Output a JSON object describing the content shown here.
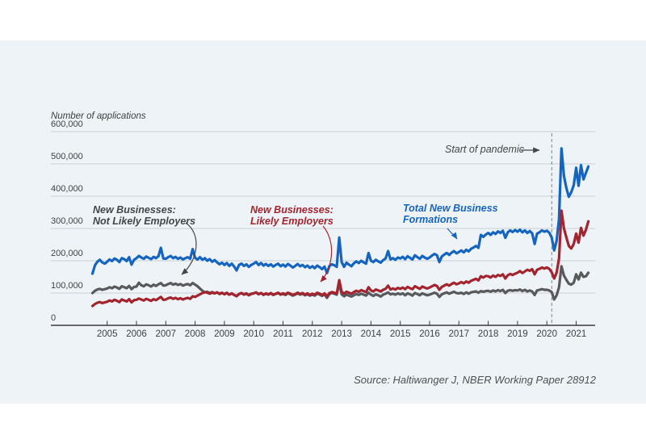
{
  "page": {
    "background": "#ffffff",
    "panel_background": "#eef3f7"
  },
  "axis_title": "Number of applications",
  "source": "Source: Haltiwanger J, NBER Working Paper 28912",
  "annotations": {
    "not_likely": {
      "line1": "New Businesses:",
      "line2": "Not Likely Employers"
    },
    "likely": {
      "line1": "New Businesses:",
      "line2": "Likely Employers"
    },
    "total": {
      "line1": "Total New Business",
      "line2": "Formations"
    },
    "pandemic": "Start of pandemic"
  },
  "colors": {
    "total_line": "#1565c0",
    "likely_line": "#a3242f",
    "not_likely_line": "#58595b",
    "gridline": "#c7cfd7",
    "axis": "#383c40",
    "pandemic_dash": "#969da6"
  },
  "chart_data": {
    "type": "line",
    "title": "",
    "ylabel": "Number of applications",
    "unit": "thousands of applications (values stored in thousands)",
    "ylim": [
      0,
      600
    ],
    "grid": true,
    "legend_position": "inline-annotations",
    "x_start": 2004.5,
    "x_step_years": 0.0833333,
    "pandemic_line_year": 2020.17,
    "y_ticks": [
      {
        "value": 0,
        "label": "0"
      },
      {
        "value": 100,
        "label": "100,000"
      },
      {
        "value": 200,
        "label": "200,000"
      },
      {
        "value": 300,
        "label": "300,000"
      },
      {
        "value": 400,
        "label": "400,000"
      },
      {
        "value": 500,
        "label": "500,000"
      },
      {
        "value": 600,
        "label": "600,000"
      }
    ],
    "x_ticks": [
      "2005",
      "2006",
      "2007",
      "2008",
      "2009",
      "2010",
      "2011",
      "2012",
      "2013",
      "2014",
      "2015",
      "2016",
      "2017",
      "2018",
      "2019",
      "2020",
      "2021"
    ],
    "series": [
      {
        "name": "New Businesses: Not Likely Employers",
        "color": "#58595b",
        "values": [
          100,
          107,
          111,
          113,
          110,
          112,
          114,
          118,
          115,
          120,
          117,
          113,
          121,
          118,
          115,
          122,
          112,
          119,
          120,
          132,
          124,
          121,
          127,
          124,
          120,
          126,
          122,
          127,
          131,
          123,
          124,
          128,
          131,
          126,
          129,
          125,
          128,
          123,
          126,
          128,
          124,
          131,
          126,
          121,
          114,
          107,
          102,
          104,
          100,
          103,
          99,
          102,
          97,
          100,
          97,
          101,
          95,
          99,
          94,
          91,
          97,
          100,
          95,
          98,
          93,
          97,
          99,
          102,
          96,
          100,
          94,
          98,
          95,
          99,
          94,
          97,
          100,
          95,
          97,
          94,
          99,
          96,
          92,
          95,
          99,
          95,
          98,
          93,
          96,
          92,
          95,
          92,
          98,
          95,
          91,
          96,
          85,
          97,
          100,
          98,
          95,
          130,
          96,
          90,
          95,
          92,
          89,
          93,
          97,
          94,
          98,
          95,
          92,
          101,
          95,
          91,
          96,
          93,
          89,
          95,
          98,
          102,
          96,
          98,
          95,
          99,
          96,
          99,
          93,
          99,
          96,
          92,
          100,
          97,
          93,
          99,
          96,
          93,
          95,
          98,
          101,
          98,
          88,
          96,
          99,
          102,
          98,
          101,
          104,
          100,
          99,
          101,
          97,
          102,
          98,
          102,
          104,
          105,
          101,
          106,
          104,
          106,
          107,
          104,
          108,
          105,
          109,
          106,
          110,
          100,
          107,
          109,
          107,
          109,
          108,
          111,
          106,
          110,
          105,
          108,
          105,
          94,
          108,
          110,
          112,
          110,
          110,
          108,
          103,
          80,
          93,
          118,
          183,
          154,
          141,
          129,
          126,
          132,
          158,
          142,
          163,
          150,
          152,
          163
        ]
      },
      {
        "name": "New Businesses: Likely Employers",
        "color": "#a3242f",
        "values": [
          60,
          66,
          70,
          72,
          69,
          71,
          73,
          77,
          74,
          79,
          76,
          72,
          80,
          77,
          74,
          81,
          71,
          78,
          79,
          83,
          80,
          77,
          82,
          79,
          76,
          81,
          78,
          83,
          88,
          79,
          80,
          84,
          86,
          82,
          85,
          81,
          84,
          80,
          83,
          85,
          82,
          90,
          88,
          92,
          96,
          100,
          103,
          101,
          98,
          101,
          99,
          102,
          98,
          101,
          96,
          100,
          95,
          99,
          94,
          90,
          97,
          100,
          96,
          99,
          94,
          98,
          99,
          102,
          97,
          100,
          95,
          99,
          96,
          100,
          95,
          98,
          101,
          96,
          99,
          96,
          101,
          98,
          94,
          97,
          101,
          97,
          100,
          95,
          99,
          94,
          98,
          95,
          101,
          98,
          94,
          99,
          90,
          100,
          103,
          101,
          98,
          140,
          104,
          98,
          104,
          101,
          98,
          103,
          107,
          104,
          109,
          106,
          103,
          118,
          108,
          105,
          111,
          108,
          105,
          110,
          113,
          123,
          111,
          114,
          111,
          116,
          113,
          117,
          112,
          119,
          115,
          112,
          121,
          117,
          113,
          120,
          117,
          114,
          117,
          121,
          125,
          122,
          110,
          119,
          123,
          127,
          123,
          128,
          132,
          127,
          130,
          134,
          130,
          136,
          132,
          138,
          141,
          144,
          139,
          152,
          148,
          153,
          152,
          148,
          154,
          150,
          156,
          153,
          158,
          145,
          155,
          159,
          156,
          160,
          163,
          168,
          162,
          167,
          172,
          169,
          174,
          158,
          172,
          175,
          179,
          176,
          179,
          175,
          164,
          145,
          163,
          207,
          355,
          300,
          272,
          246,
          238,
          252,
          284,
          256,
          302,
          278,
          296,
          322
        ]
      },
      {
        "name": "Total New Business Formations",
        "color": "#1565c0",
        "values": [
          160,
          186,
          197,
          203,
          195,
          191,
          197,
          204,
          199,
          207,
          203,
          196,
          208,
          205,
          199,
          211,
          188,
          203,
          208,
          215,
          210,
          206,
          213,
          209,
          205,
          212,
          208,
          214,
          240,
          207,
          206,
          211,
          215,
          208,
          212,
          206,
          210,
          204,
          208,
          211,
          206,
          236,
          209,
          204,
          211,
          203,
          208,
          200,
          205,
          197,
          202,
          195,
          189,
          194,
          187,
          193,
          184,
          191,
          182,
          170,
          187,
          191,
          184,
          189,
          181,
          187,
          191,
          196,
          187,
          193,
          185,
          190,
          184,
          189,
          182,
          187,
          191,
          183,
          188,
          182,
          190,
          185,
          179,
          184,
          190,
          183,
          187,
          180,
          185,
          178,
          183,
          177,
          185,
          180,
          174,
          182,
          162,
          184,
          189,
          186,
          181,
          272,
          196,
          181,
          194,
          188,
          183,
          192,
          198,
          193,
          200,
          195,
          191,
          224,
          200,
          196,
          203,
          198,
          194,
          202,
          207,
          230,
          204,
          208,
          203,
          210,
          207,
          212,
          205,
          214,
          209,
          204,
          217,
          211,
          206,
          215,
          210,
          206,
          210,
          216,
          221,
          217,
          196,
          213,
          219,
          224,
          218,
          225,
          230,
          223,
          227,
          232,
          226,
          234,
          229,
          237,
          241,
          246,
          240,
          280,
          274,
          281,
          286,
          280,
          288,
          283,
          291,
          286,
          293,
          271,
          288,
          294,
          289,
          295,
          290,
          296,
          288,
          294,
          286,
          292,
          285,
          252,
          284,
          288,
          294,
          290,
          293,
          287,
          272,
          232,
          262,
          330,
          548,
          462,
          425,
          398,
          412,
          434,
          488,
          432,
          496,
          452,
          472,
          492
        ]
      }
    ]
  }
}
